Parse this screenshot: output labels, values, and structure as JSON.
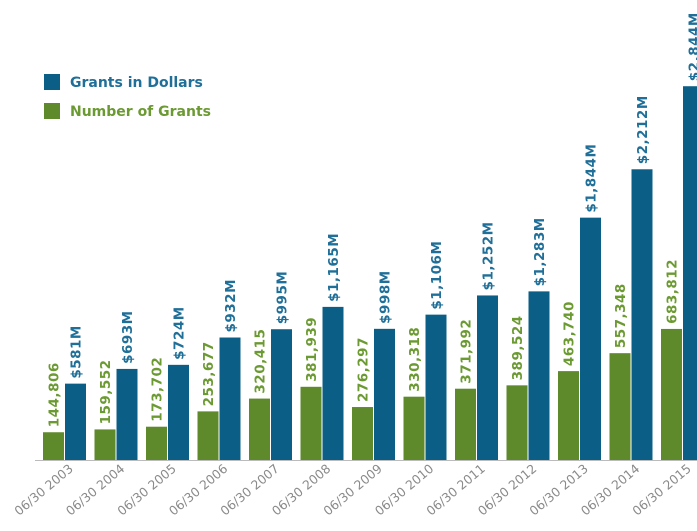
{
  "chart_data": {
    "type": "bar",
    "categories": [
      "06/30 2003",
      "06/30 2004",
      "06/30 2005",
      "06/30 2006",
      "06/30 2007",
      "06/30 2008",
      "06/30 2009",
      "06/30 2010",
      "06/30 2011",
      "06/30 2012",
      "06/30 2013",
      "06/30 2014",
      "06/30 2015"
    ],
    "series": [
      {
        "name": "Grants in Dollars",
        "color": "#0b5f86",
        "label_color": "#1f6f98",
        "values": [
          581,
          693,
          724,
          932,
          995,
          1165,
          998,
          1106,
          1252,
          1283,
          1844,
          2212,
          2844
        ],
        "value_labels": [
          "$581M",
          "$693M",
          "$724M",
          "$932M",
          "$995M",
          "$1,165M",
          "$998M",
          "$1,106M",
          "$1,252M",
          "$1,283M",
          "$1,844M",
          "$2,212M",
          "$2,844M"
        ]
      },
      {
        "name": "Number of Grants",
        "color": "#5e8a2b",
        "label_color": "#6c9a32",
        "axis": "y2",
        "values": [
          144806,
          159552,
          173702,
          253677,
          320415,
          381939,
          276297,
          330318,
          371992,
          389524,
          463740,
          557348,
          683812
        ],
        "value_labels": [
          "144,806",
          "159,552",
          "173,702",
          "253,677",
          "320,415",
          "381,939",
          "276,297",
          "330,318",
          "371,992",
          "389,524",
          "463,740",
          "557,348",
          "683,812"
        ]
      }
    ],
    "ylim": [
      0,
      3500
    ],
    "y2lim": [
      0,
      2400000
    ],
    "legend": "top-left"
  }
}
